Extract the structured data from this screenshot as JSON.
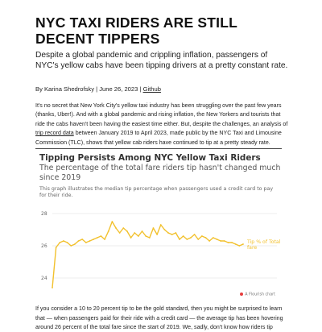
{
  "article": {
    "title": "NYC TAXI RIDERS ARE STILL DECENT TIPPERS",
    "subtitle": "Despite a global pandemic and crippling inflation, passengers of NYC's yellow cabs have been tipping drivers at a pretty constant rate.",
    "byline_prefix": "By Karina Shedrofsky | June 26, 2023 |",
    "github_link": "Github",
    "intro_before_link": "It's no secret that New York City's yellow taxi industry has been struggling over the past few years (thanks, Uber!). And with a global pandemic and rising inflation, the New Yorkers and tourists that ride the cabs haven't been having the easiest time either. But, despite the challenges, an analysis of ",
    "intro_link": "trip record data",
    "intro_after_link": " between January 2019 to April 2023, made public by the NYC Taxi and Limousine Commission (TLC), shows that yellow cab riders have continued to tip at a pretty steady rate.",
    "outro": "If you consider a 10 to 20 percent tip to be the gold standard, then you might be surprised to learn that — when passengers paid for their ride with a credit card — the average tip has been hovering around 26 percent of the total fare since the start of 2019. We, sadly, don't know how riders tip"
  },
  "chart": {
    "title": "Tipping Persists Among NYC Yellow Taxi Riders",
    "subtitle": "The percentage of the total fare riders tip hasn't changed much since 2019",
    "note": "This graph illustrates the median tip percentage when passengers used a credit card to pay for their ride.",
    "credit": "A Flourish chart",
    "line_label_1": "Tip % of Total",
    "line_label_2": "fare"
  },
  "chart_data": {
    "type": "line",
    "ylim": [
      23.3,
      28.2
    ],
    "yticks": [
      24,
      26,
      28
    ],
    "grid": true,
    "series": [
      {
        "color": "#f2c12e",
        "x": [
          1,
          2,
          3,
          4,
          5,
          6,
          7,
          8,
          9,
          10,
          11,
          12,
          13,
          14,
          15,
          16,
          17,
          18,
          19,
          20,
          21,
          22,
          23,
          24,
          25,
          26,
          27,
          28,
          29,
          30,
          31,
          32,
          33,
          34,
          35,
          36,
          37,
          38,
          39,
          40,
          41,
          42,
          43,
          44,
          45,
          46,
          47,
          48,
          49,
          50,
          51,
          52
        ],
        "values": [
          23.4,
          25.9,
          26.2,
          26.3,
          26.2,
          26.0,
          26.1,
          26.3,
          26.4,
          26.2,
          26.3,
          26.4,
          26.5,
          26.6,
          26.4,
          26.9,
          27.5,
          27.1,
          26.8,
          27.1,
          26.9,
          26.5,
          26.8,
          26.6,
          26.9,
          26.6,
          26.5,
          27.1,
          26.7,
          27.3,
          27.0,
          26.8,
          26.7,
          26.8,
          26.4,
          26.6,
          26.4,
          26.5,
          26.7,
          26.4,
          26.6,
          26.5,
          26.3,
          26.5,
          26.4,
          26.3,
          26.3,
          26.2,
          26.2,
          26.1,
          26.0,
          26.1
        ]
      }
    ]
  }
}
